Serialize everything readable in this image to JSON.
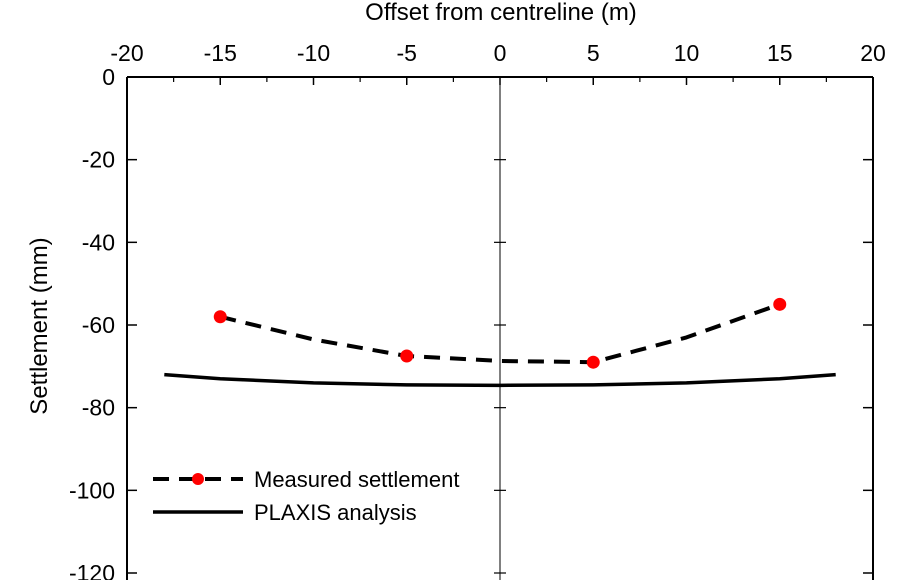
{
  "chart_data": {
    "type": "line",
    "title": "",
    "xlabel": "Offset from centreline (m)",
    "ylabel": "Settlement (mm)",
    "xlim": [
      -20,
      20
    ],
    "ylim": [
      -120,
      0
    ],
    "x_ticks": [
      -20,
      -15,
      -10,
      -5,
      0,
      5,
      10,
      15,
      20
    ],
    "x_tick_labels": [
      "-20",
      "-15",
      "-10",
      "-5",
      "0",
      "5",
      "10",
      "15",
      "20"
    ],
    "y_ticks": [
      0,
      -20,
      -40,
      -60,
      -80,
      -100,
      -120
    ],
    "y_tick_labels": [
      "0",
      "-20",
      "-40",
      "-60",
      "-80",
      "-100",
      "-120"
    ],
    "x_axis_position": "top",
    "grid": false,
    "legend_position": "bottom-left",
    "series": [
      {
        "name": "Measured settlement",
        "style": "dashed-with-markers",
        "color": "#000000",
        "marker_color": "#ff0000",
        "x": [
          -15,
          -5,
          5,
          15
        ],
        "values": [
          -58,
          -67.5,
          -69,
          -55
        ],
        "curve": [
          [
            -15,
            -58
          ],
          [
            -10,
            -63.5
          ],
          [
            -5,
            -67.5
          ],
          [
            0,
            -68.7
          ],
          [
            5,
            -69
          ],
          [
            10,
            -63
          ],
          [
            15,
            -55
          ]
        ]
      },
      {
        "name": "PLAXIS analysis",
        "style": "solid",
        "color": "#000000",
        "x": [
          -18,
          -15,
          -10,
          -5,
          0,
          5,
          10,
          15,
          18
        ],
        "values": [
          -72,
          -73,
          -74,
          -74.5,
          -74.6,
          -74.5,
          -74,
          -73,
          -72
        ]
      }
    ]
  }
}
